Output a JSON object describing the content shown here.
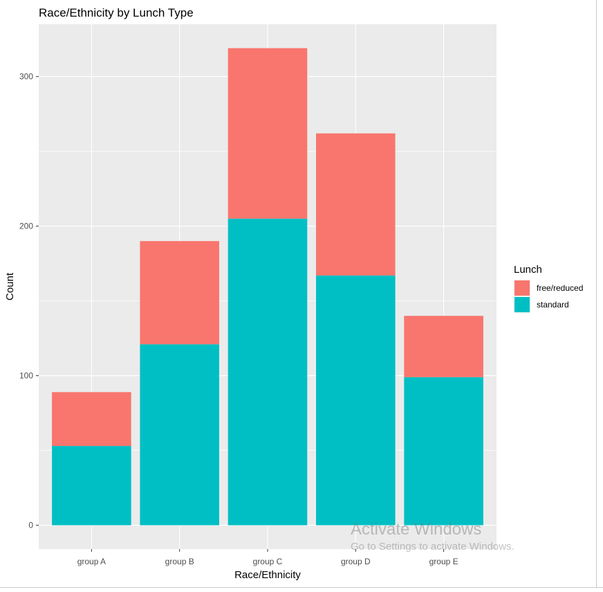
{
  "chart_data": {
    "type": "bar",
    "stacked": true,
    "title": "Race/Ethnicity by Lunch Type",
    "xlabel": "Race/Ethnicity",
    "ylabel": "Count",
    "categories": [
      "group A",
      "group B",
      "group C",
      "group D",
      "group E"
    ],
    "series": [
      {
        "name": "standard",
        "color": "#00BFC4",
        "values": [
          53,
          121,
          205,
          167,
          99
        ]
      },
      {
        "name": "free/reduced",
        "color": "#F8766D",
        "values": [
          36,
          69,
          114,
          95,
          41
        ]
      }
    ],
    "ylim": [
      -15.95,
      335
    ],
    "yticks": [
      0,
      100,
      200,
      300
    ],
    "grid": true,
    "legend": {
      "title": "Lunch",
      "placement": "right",
      "entries": [
        {
          "label": "free/reduced",
          "color": "#F8766D"
        },
        {
          "label": "standard",
          "color": "#00BFC4"
        }
      ]
    }
  },
  "watermark": {
    "title": "Activate Windows",
    "subtitle": "Go to Settings to activate Windows."
  }
}
